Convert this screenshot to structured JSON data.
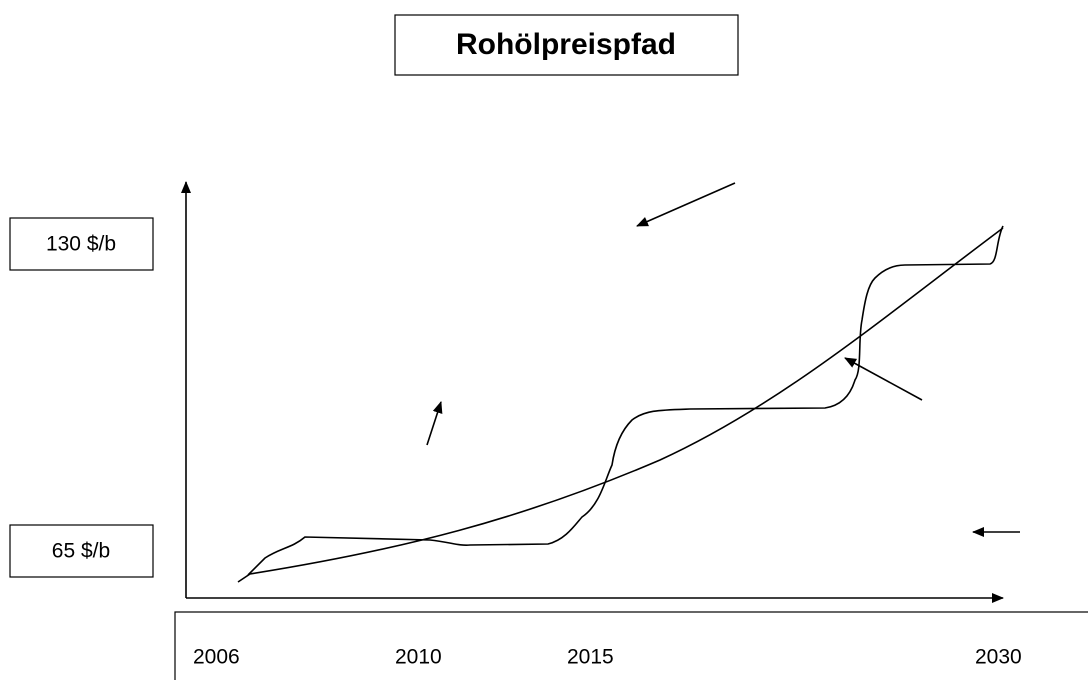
{
  "title": "Rohölpreispfad",
  "y_labels": [
    "130 $/b",
    "65 $/b"
  ],
  "x_labels": [
    "2006",
    "2010",
    "2015",
    "2030"
  ]
}
